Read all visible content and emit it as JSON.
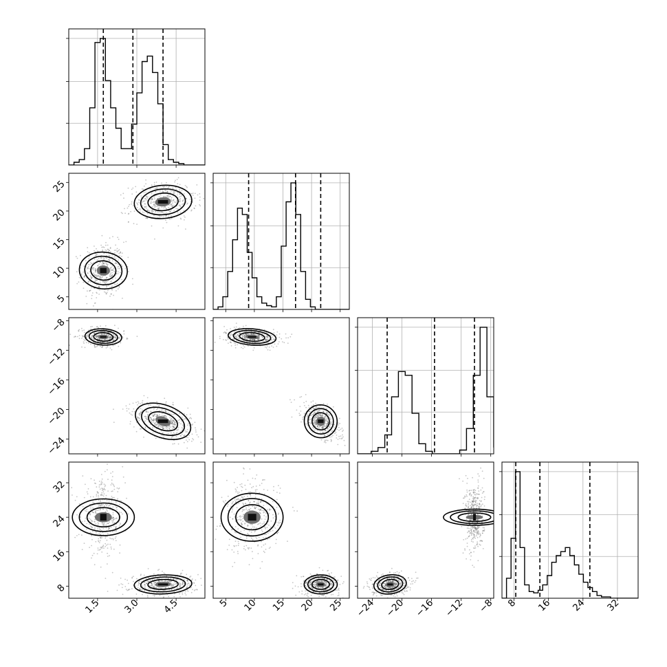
{
  "chart_data": {
    "type": "corner",
    "title": "",
    "parameters": [
      {
        "label": "",
        "range": [
          0.4,
          5.6
        ],
        "ticks": [
          1.5,
          3.0,
          4.5
        ],
        "tick_labels": [
          "1.5",
          "3.0",
          "4.5"
        ]
      },
      {
        "label": "",
        "range": [
          2.8,
          26.6
        ],
        "ticks": [
          5,
          10,
          15,
          20,
          25
        ],
        "tick_labels": [
          "5",
          "10",
          "15",
          "20",
          "25"
        ]
      },
      {
        "label": "",
        "range": [
          -26.0,
          -7.6
        ],
        "ticks": [
          -24,
          -20,
          -16,
          -12,
          -8
        ],
        "tick_labels": [
          "−24",
          "−20",
          "−16",
          "−12",
          "−8"
        ]
      },
      {
        "label": "",
        "range": [
          5.2,
          36.8
        ],
        "ticks": [
          8,
          16,
          24,
          32
        ],
        "tick_labels": [
          "8",
          "16",
          "24",
          "32"
        ]
      }
    ],
    "marginals": [
      {
        "param": 0,
        "bin_start": 0.4,
        "bin_width": 0.2,
        "counts": [
          0,
          0.02,
          0.04,
          0.12,
          0.42,
          0.9,
          0.93,
          0.62,
          0.42,
          0.27,
          0.12,
          0.12,
          0.3,
          0.53,
          0.76,
          0.8,
          0.68,
          0.45,
          0.15,
          0.04,
          0.02,
          0.01,
          0,
          0,
          0,
          0
        ],
        "quantiles": [
          1.72,
          2.85,
          4.0
        ]
      },
      {
        "param": 1,
        "bin_start": 2.8,
        "bin_width": 0.85,
        "counts": [
          0,
          0.02,
          0.1,
          0.3,
          0.55,
          0.8,
          0.75,
          0.45,
          0.25,
          0.1,
          0.05,
          0.03,
          0.02,
          0.1,
          0.5,
          0.85,
          1.0,
          0.75,
          0.3,
          0.08,
          0.02,
          0,
          0,
          0,
          0,
          0,
          0,
          0
        ],
        "quantiles": [
          9.0,
          17.2,
          21.6
        ]
      },
      {
        "param": 2,
        "bin_start": -26.0,
        "bin_width": 0.92,
        "counts": [
          0,
          0,
          0.02,
          0.05,
          0.15,
          0.45,
          0.65,
          0.62,
          0.32,
          0.08,
          0.02,
          0,
          0,
          0,
          0,
          0.03,
          0.2,
          0.62,
          1.0,
          0.45,
          0.05
        ],
        "quantiles": [
          -22.0,
          -15.6,
          -10.2
        ]
      },
      {
        "param": 3,
        "bin_start": 5.2,
        "bin_width": 1.05,
        "counts": [
          0,
          0.15,
          0.45,
          0.95,
          0.38,
          0.1,
          0.05,
          0.04,
          0.06,
          0.1,
          0.17,
          0.27,
          0.32,
          0.35,
          0.38,
          0.32,
          0.25,
          0.18,
          0.12,
          0.08,
          0.05,
          0.02,
          0.01,
          0.01,
          0,
          0,
          0,
          0,
          0,
          0
        ],
        "quantiles": [
          8.4,
          14.0,
          25.6
        ]
      }
    ],
    "joint_modes": [
      {
        "params": [
          0,
          1
        ],
        "centers": [
          [
            1.72,
            9.6
          ],
          [
            4.0,
            21.6
          ]
        ],
        "sigmas": [
          [
            0.35,
            2.1
          ],
          [
            0.55,
            1.45
          ]
        ],
        "corr": [
          0.05,
          0.1
        ]
      },
      {
        "params": [
          0,
          2
        ],
        "centers": [
          [
            1.72,
            -10.2
          ],
          [
            4.0,
            -21.6
          ]
        ],
        "sigmas": [
          [
            0.35,
            0.55
          ],
          [
            0.55,
            1.1
          ]
        ],
        "corr": [
          -0.1,
          -0.5
        ]
      },
      {
        "params": [
          1,
          2
        ],
        "centers": [
          [
            9.6,
            -10.2
          ],
          [
            21.6,
            -21.6
          ]
        ],
        "sigmas": [
          [
            2.1,
            0.55
          ],
          [
            1.45,
            1.1
          ]
        ],
        "corr": [
          -0.2,
          -0.6
        ]
      },
      {
        "params": [
          0,
          3
        ],
        "centers": [
          [
            1.72,
            24.0
          ],
          [
            4.0,
            8.4
          ]
        ],
        "sigmas": [
          [
            0.35,
            3.6
          ],
          [
            0.55,
            1.1
          ]
        ],
        "corr": [
          0.0,
          0.1
        ]
      },
      {
        "params": [
          1,
          3
        ],
        "centers": [
          [
            9.6,
            24.0
          ],
          [
            21.6,
            8.4
          ]
        ],
        "sigmas": [
          [
            2.1,
            3.6
          ],
          [
            1.45,
            1.1
          ]
        ],
        "corr": [
          0.0,
          0.0
        ]
      },
      {
        "params": [
          2,
          3
        ],
        "centers": [
          [
            -10.2,
            24.0
          ],
          [
            -21.6,
            8.4
          ]
        ],
        "sigmas": [
          [
            0.55,
            3.6
          ],
          [
            1.1,
            1.1
          ]
        ],
        "corr": [
          0.0,
          0.15
        ]
      }
    ],
    "grid": true
  }
}
